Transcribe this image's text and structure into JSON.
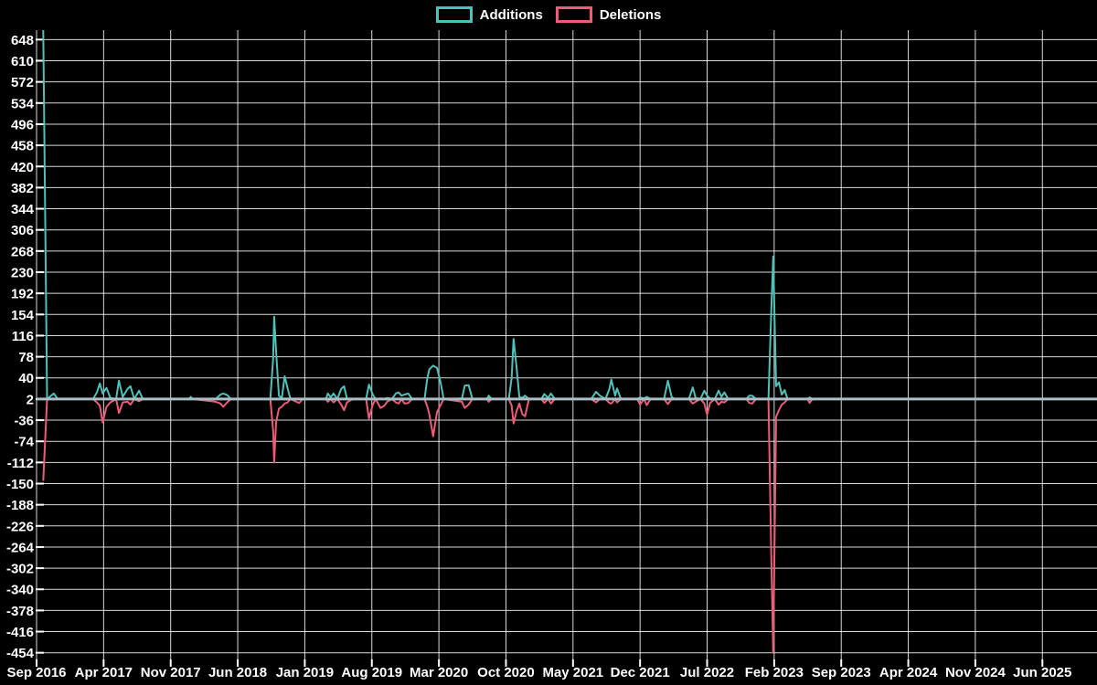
{
  "page": {
    "background_color": "#000000",
    "text_color": "#ffffff"
  },
  "legend": {
    "items": [
      {
        "label": "Additions",
        "color": "#4cc2ba"
      },
      {
        "label": "Deletions",
        "color": "#ee5b76"
      }
    ]
  },
  "chart_data": {
    "type": "line",
    "title": "",
    "xlabel": "",
    "ylabel": "",
    "grid": true,
    "legend_position": "top-center",
    "background": "#000000",
    "grid_color": "#ffffff",
    "tick_text_color": "#ffffff",
    "baseline": {
      "value": 2,
      "color": "#a9bec5"
    },
    "y_axis": {
      "ticks": [
        648,
        610,
        572,
        534,
        496,
        458,
        420,
        382,
        344,
        306,
        268,
        230,
        192,
        154,
        116,
        78,
        40,
        2,
        -36,
        -74,
        -112,
        -150,
        -188,
        -226,
        -264,
        -302,
        -340,
        -378,
        -416,
        -454
      ],
      "ylim": [
        -466,
        665
      ]
    },
    "x_axis": {
      "unit": "months since Sep 2016",
      "tick_labels": [
        "Sep 2016",
        "Apr 2017",
        "Nov 2017",
        "Jun 2018",
        "Jan 2019",
        "Aug 2019",
        "Mar 2020",
        "Oct 2020",
        "May 2021",
        "Dec 2021",
        "Jul 2022",
        "Feb 2023",
        "Sep 2023",
        "Apr 2024",
        "Nov 2024",
        "Jun 2025"
      ],
      "tick_months": [
        0,
        7,
        14,
        21,
        28,
        35,
        42,
        49,
        56,
        63,
        70,
        77,
        84,
        91,
        98,
        105
      ],
      "xlim": [
        0,
        110.7
      ]
    },
    "x_months": [
      0.7,
      1.1,
      1.8,
      2.2,
      5.9,
      6.3,
      6.6,
      6.9,
      7.3,
      7.7,
      8.3,
      8.6,
      9.0,
      9.5,
      9.8,
      10.2,
      10.7,
      11.1,
      15.9,
      16.1,
      16.3,
      18.7,
      19.2,
      19.5,
      19.9,
      20.3,
      24.4,
      24.7,
      24.8,
      25.0,
      25.3,
      25.6,
      25.9,
      26.2,
      26.5,
      27.4,
      27.8,
      30.2,
      30.4,
      30.7,
      31.0,
      31.4,
      31.8,
      32.1,
      32.4,
      33.0,
      34.4,
      34.7,
      35.1,
      35.4,
      35.9,
      36.3,
      36.6,
      37.1,
      37.5,
      37.8,
      38.1,
      38.4,
      38.8,
      39.2,
      40.5,
      40.8,
      41.0,
      41.4,
      41.8,
      42.2,
      42.5,
      44.4,
      44.7,
      45.1,
      45.5,
      47.0,
      47.2,
      47.5,
      49.3,
      49.6,
      49.8,
      50.1,
      50.4,
      50.7,
      51.0,
      51.4,
      52.7,
      53.0,
      53.4,
      53.7,
      54.1,
      57.9,
      58.4,
      58.8,
      59.4,
      59.8,
      60.0,
      60.4,
      60.6,
      61.0,
      62.7,
      63.0,
      63.4,
      63.7,
      64.1,
      65.5,
      65.9,
      66.3,
      66.6,
      68.1,
      68.5,
      68.8,
      69.3,
      69.7,
      70.0,
      70.3,
      70.8,
      71.2,
      71.5,
      71.8,
      72.2,
      74.1,
      74.4,
      74.7,
      75.1,
      76.4,
      76.7,
      76.9,
      77.2,
      77.5,
      77.8,
      78.1,
      78.4,
      80.5,
      80.7,
      81.0,
      110.7
    ],
    "series": [
      {
        "name": "Additions",
        "color": "#4cc2ba",
        "values": [
          667,
          2,
          12,
          2,
          2,
          14,
          30,
          12,
          22,
          4,
          2,
          35,
          6,
          20,
          25,
          2,
          17,
          2,
          2,
          6,
          2,
          2,
          10,
          12,
          9,
          2,
          2,
          75,
          150,
          88,
          8,
          4,
          43,
          22,
          2,
          2,
          2,
          2,
          12,
          5,
          12,
          2,
          20,
          25,
          3,
          2,
          2,
          28,
          10,
          2,
          3,
          2,
          4,
          2,
          12,
          14,
          8,
          10,
          12,
          2,
          2,
          40,
          55,
          62,
          58,
          30,
          2,
          3,
          26,
          27,
          2,
          2,
          8,
          2,
          2,
          40,
          110,
          60,
          6,
          4,
          8,
          2,
          2,
          11,
          4,
          12,
          2,
          2,
          15,
          8,
          2,
          20,
          37,
          8,
          21,
          2,
          2,
          5,
          3,
          6,
          2,
          2,
          35,
          6,
          2,
          2,
          23,
          4,
          2,
          17,
          8,
          3,
          2,
          17,
          6,
          14,
          2,
          2,
          8,
          8,
          2,
          2,
          160,
          258,
          25,
          32,
          10,
          18,
          2,
          2,
          5,
          2,
          2
        ]
      },
      {
        "name": "Deletions",
        "color": "#ee5b76",
        "values": [
          -145,
          2,
          2,
          2,
          2,
          -4,
          -10,
          -40,
          -12,
          -4,
          2,
          -23,
          -4,
          -3,
          -8,
          2,
          -2,
          2,
          2,
          2,
          2,
          -3,
          -6,
          -12,
          -4,
          2,
          2,
          -55,
          -112,
          -40,
          -15,
          -12,
          -6,
          -4,
          2,
          -5,
          2,
          2,
          -3,
          2,
          -4,
          2,
          -8,
          -18,
          -4,
          2,
          2,
          -33,
          -8,
          2,
          -14,
          -10,
          -3,
          2,
          -4,
          -6,
          2,
          -6,
          -5,
          2,
          2,
          -12,
          -25,
          -65,
          -22,
          -8,
          2,
          -3,
          -14,
          -8,
          2,
          2,
          -3,
          2,
          2,
          -10,
          -42,
          -20,
          -6,
          -25,
          -29,
          2,
          2,
          -5,
          2,
          -6,
          2,
          2,
          -4,
          2,
          2,
          -5,
          -6,
          2,
          -4,
          2,
          2,
          -8,
          2,
          -9,
          2,
          2,
          -7,
          2,
          2,
          2,
          -6,
          -3,
          2,
          -6,
          -26,
          -5,
          2,
          -8,
          -3,
          -4,
          2,
          2,
          -5,
          -6,
          2,
          2,
          -280,
          -454,
          -30,
          -18,
          -8,
          -4,
          2,
          2,
          -5,
          2,
          2
        ]
      }
    ]
  }
}
